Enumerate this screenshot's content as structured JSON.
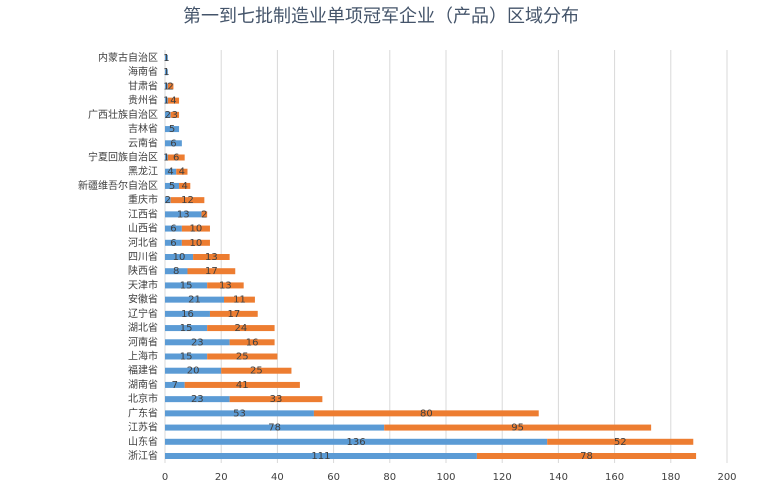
{
  "chart_data": {
    "type": "stacked-barh",
    "title": "第一到七批制造业单项冠军企业（产品）区域分布",
    "categories": [
      "内蒙古自治区",
      "海南省",
      "甘肃省",
      "贵州省",
      "广西壮族自治区",
      "吉林省",
      "云南省",
      "宁夏回族自治区",
      "黑龙江",
      "新疆维吾尔自治区",
      "重庆市",
      "江西省",
      "山西省",
      "河北省",
      "四川省",
      "陕西省",
      "天津市",
      "安徽省",
      "辽宁省",
      "湖北省",
      "河南省",
      "上海市",
      "福建省",
      "湖南省",
      "北京市",
      "广东省",
      "江苏省",
      "山东省",
      "浙江省"
    ],
    "series": [
      {
        "color": "#5b9bd5",
        "values": [
          1,
          1,
          1,
          1,
          2,
          5,
          6,
          1,
          4,
          5,
          2,
          13,
          6,
          6,
          10,
          8,
          15,
          21,
          16,
          15,
          23,
          15,
          20,
          7,
          23,
          53,
          78,
          136,
          111
        ]
      },
      {
        "color": "#ed7d31",
        "values": [
          null,
          null,
          2,
          4,
          3,
          null,
          null,
          6,
          4,
          4,
          12,
          2,
          10,
          10,
          13,
          17,
          13,
          11,
          17,
          24,
          16,
          25,
          25,
          41,
          33,
          80,
          95,
          52,
          78
        ]
      }
    ],
    "xlim": [
      0,
      200
    ],
    "xticks": [
      0,
      20,
      40,
      60,
      80,
      100,
      120,
      140,
      160,
      180,
      200
    ],
    "grid": true
  }
}
